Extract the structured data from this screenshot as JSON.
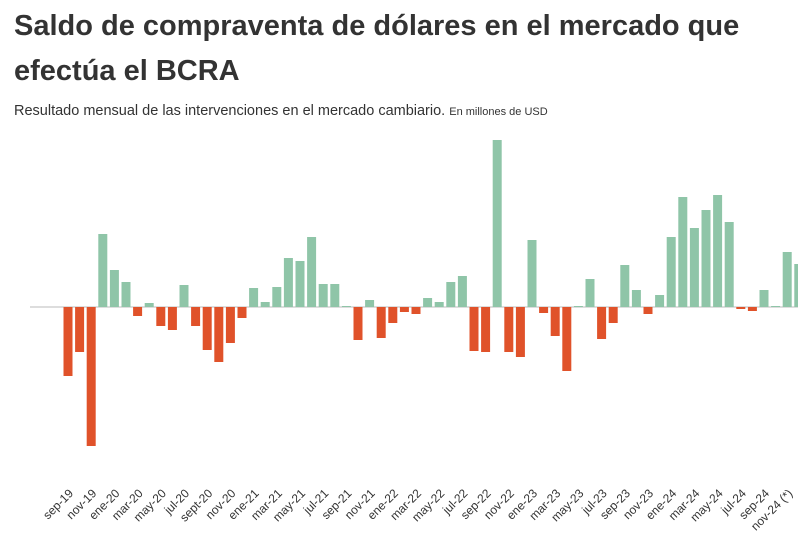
{
  "chart_data": {
    "type": "bar",
    "title": "Saldo de compraventa de dólares en el mercado que efectúa el BCRA",
    "subtitle": "Resultado  mensual de las intervenciones en el mercado cambiario.",
    "unit_note": "En millones de USD",
    "categories": [
      "sep-19",
      null,
      "nov-19",
      null,
      "ene-20",
      null,
      "mar-20",
      null,
      "may-20",
      null,
      "jul-20",
      null,
      "sept-20",
      null,
      "nov-20",
      null,
      "ene-21",
      null,
      "mar-21",
      null,
      "may-21",
      null,
      "jul-21",
      null,
      "sep-21",
      null,
      "nov-21",
      null,
      "ene-22",
      null,
      "mar-22",
      null,
      "may-22",
      null,
      "jul-22",
      null,
      "sep-22",
      null,
      "nov-22",
      null,
      "ene-23",
      null,
      "mar-23",
      null,
      "may-23",
      null,
      "jul-23",
      null,
      "sep-23",
      null,
      "nov-23",
      null,
      "ene-24",
      null,
      "mar-24",
      null,
      "may-24",
      null,
      "jul-24",
      null,
      "sep-24",
      null,
      "nov-24 (*)",
      null
    ],
    "values": [
      -2070,
      -1350,
      -4170,
      2190,
      1110,
      750,
      -270,
      120,
      -570,
      -690,
      660,
      -570,
      -1290,
      -1650,
      -1080,
      -330,
      570,
      150,
      600,
      1470,
      1380,
      2100,
      690,
      690,
      30,
      -990,
      210,
      -930,
      -480,
      -150,
      -210,
      270,
      150,
      750,
      930,
      -1320,
      -1350,
      5010,
      -1350,
      -1500,
      2010,
      -180,
      -870,
      -1920,
      30,
      840,
      -960,
      -480,
      1260,
      510,
      -210,
      360,
      2100,
      3300,
      2370,
      2910,
      3360,
      2550,
      -60,
      -120,
      510,
      30,
      1650,
      1290
    ],
    "positive_color": "#8fc5a8",
    "negative_color": "#e0522a",
    "ylim": [
      -4500,
      5100
    ]
  }
}
